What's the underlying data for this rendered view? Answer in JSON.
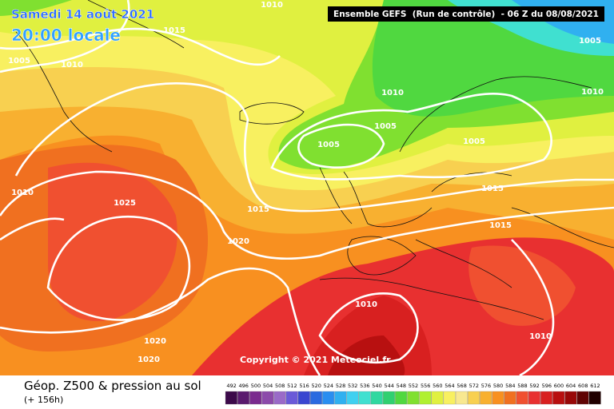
{
  "header": {
    "date": "Samedi 14 août 2021",
    "time": "20:00 locale",
    "run": "Ensemble GEFS  (Run de contrôle)  - 06 Z du 08/08/2021"
  },
  "copyright": "Copyright © 2021 Meteociel.fr",
  "footer": {
    "title": "Géop. Z500 & pression au sol",
    "lead": "(+ 156h)"
  },
  "legend": {
    "values": [
      492,
      496,
      500,
      504,
      508,
      512,
      516,
      520,
      524,
      528,
      532,
      536,
      540,
      544,
      548,
      552,
      556,
      560,
      564,
      568,
      572,
      576,
      580,
      584,
      588,
      592,
      596,
      600,
      604,
      608,
      612
    ],
    "colors": [
      "#3c0a4a",
      "#5a1a6e",
      "#7a2a8e",
      "#8c4aaa",
      "#9a6ac8",
      "#6a5ad8",
      "#3a46d0",
      "#2a6ae0",
      "#2a8ef0",
      "#30b0f0",
      "#40d0f0",
      "#40e0d0",
      "#30d8a0",
      "#30d070",
      "#50d840",
      "#80e030",
      "#b0f030",
      "#e0f040",
      "#f8f060",
      "#f8e890",
      "#f8d050",
      "#f8b030",
      "#f89020",
      "#f07020",
      "#f05030",
      "#e83030",
      "#d82020",
      "#b81010",
      "#980808",
      "#600404",
      "#200000"
    ]
  },
  "isobar_labels": [
    "1010",
    "1015",
    "1005",
    "1010",
    "1005",
    "1010",
    "1010",
    "1005",
    "1005",
    "1005",
    "1010",
    "1025",
    "1015",
    "1015",
    "1015",
    "1020",
    "1010",
    "1020",
    "1020",
    "1010"
  ]
}
